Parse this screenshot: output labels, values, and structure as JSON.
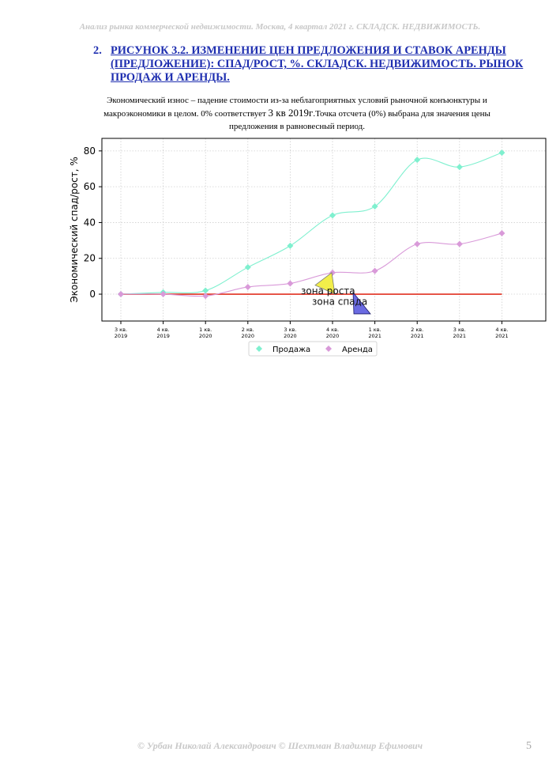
{
  "header": {
    "text": "Анализ рынка коммерческой недвижимости.   Москва,  4 квартал 2021 г.   СКЛАДСК. НЕДВИЖИМОСТЬ."
  },
  "figure": {
    "number": "2.",
    "title": "РИСУНОК 3.2. ИЗМЕНЕНИЕ ЦЕН ПРЕДЛОЖЕНИЯ И СТАВОК АРЕНДЫ (ПРЕДЛОЖЕНИЕ): СПАД/РОСТ, %. СКЛАДСК. НЕДВИЖИМОСТЬ. РЫНОК ПРОДАЖ И АРЕНДЫ."
  },
  "description": {
    "part1": "Экономический износ – падение стоимости из-за неблагоприятных условий рыночной конъюнктуры и макроэкономики в целом. 0% соответствует ",
    "emph": "3 кв 2019г",
    "part2": ".Точка отсчета (0%) выбрана для значения цены предложения в равновесный период."
  },
  "chart_data": {
    "type": "line",
    "title": "",
    "ylabel": "Экономический спад/рост, %",
    "xlabel": "",
    "categories": [
      [
        "3 кв.",
        "2019"
      ],
      [
        "4 кв.",
        "2019"
      ],
      [
        "1 кв.",
        "2020"
      ],
      [
        "2 кв.",
        "2020"
      ],
      [
        "3 кв.",
        "2020"
      ],
      [
        "4 кв.",
        "2020"
      ],
      [
        "1 кв.",
        "2021"
      ],
      [
        "2 кв.",
        "2021"
      ],
      [
        "3 кв.",
        "2021"
      ],
      [
        "4 кв.",
        "2021"
      ]
    ],
    "series": [
      {
        "name": "Продажа",
        "color": "#7ff0cf",
        "values": [
          0,
          1,
          2,
          15,
          27,
          44,
          49,
          75,
          71,
          79
        ]
      },
      {
        "name": "Аренда",
        "color": "#d99ad9",
        "values": [
          0,
          0,
          -1,
          4,
          6,
          12,
          13,
          28,
          28,
          34
        ]
      }
    ],
    "baseline": {
      "value": 0,
      "color": "#e03020"
    },
    "yticks": [
      0,
      20,
      40,
      60,
      80
    ],
    "ylim": [
      -15,
      87
    ],
    "grid": true,
    "legend_position": "bottom-center",
    "annotations": {
      "growth": {
        "text": "зона роста",
        "color": "#f2ee4a"
      },
      "decline": {
        "text": "зона спада",
        "color": "#3a3ad8"
      }
    }
  },
  "footer": {
    "authors": "© Урбан Николай Александрович   © Шехтман Владимир Ефимович",
    "page_number": "5"
  }
}
